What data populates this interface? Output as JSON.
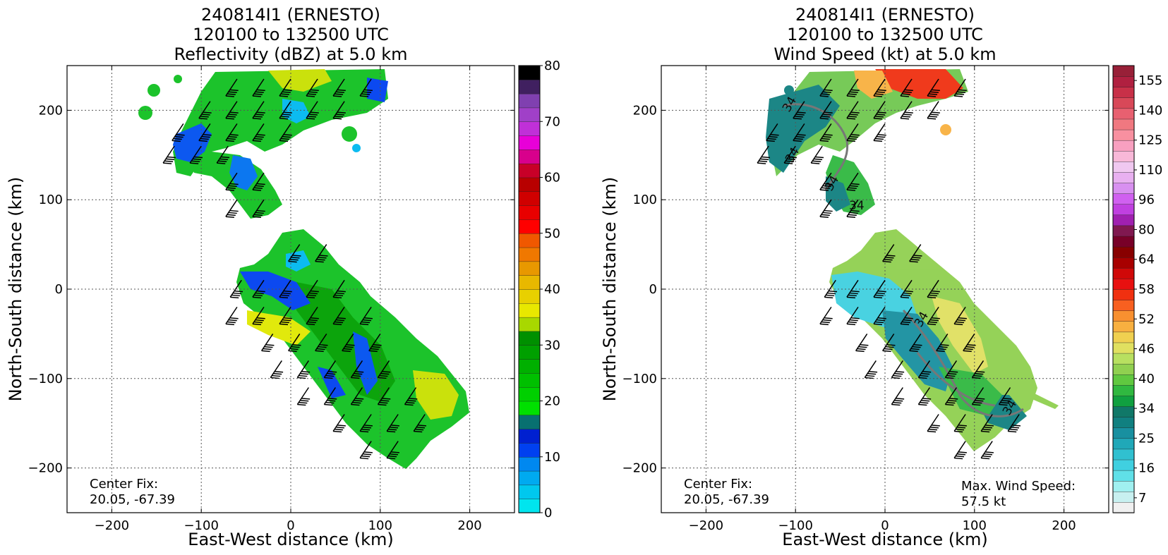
{
  "chart_data": [
    {
      "type": "heatmap",
      "title_lines": [
        "240814I1 (ERNESTO)",
        "120100 to 132500 UTC",
        "Reflectivity (dBZ) at 5.0 km"
      ],
      "xlabel": "East-West distance (km)",
      "ylabel": "North-South distance (km)",
      "xlim": [
        -250,
        250
      ],
      "ylim": [
        -250,
        250
      ],
      "xticks": [
        -200,
        -100,
        0,
        100,
        200
      ],
      "yticks": [
        -200,
        -100,
        0,
        100,
        200
      ],
      "xtick_labels": [
        "−200",
        "−100",
        "0",
        "100",
        "200"
      ],
      "ytick_labels": [
        "−200",
        "−100",
        "0",
        "100",
        "200"
      ],
      "grid": true,
      "annotation_lines": [
        "Center Fix:",
        "20.05, -67.39"
      ],
      "colorbar": {
        "range": [
          0,
          80
        ],
        "ticks": [
          0,
          10,
          20,
          30,
          40,
          50,
          60,
          70,
          80
        ],
        "tick_labels": [
          "0",
          "10",
          "20",
          "30",
          "40",
          "50",
          "60",
          "70",
          "80"
        ],
        "colors": [
          "#00e5ee",
          "#00c8ee",
          "#00aaf0",
          "#0088f0",
          "#0040f0",
          "#0020d0",
          "#087070",
          "#00e000",
          "#00d000",
          "#00c000",
          "#00b000",
          "#00a000",
          "#009000",
          "#a8d800",
          "#e8e800",
          "#e8d000",
          "#e8b800",
          "#e89800",
          "#f07800",
          "#f05800",
          "#ff0000",
          "#e80000",
          "#d00000",
          "#b80000",
          "#c80028",
          "#d8008c",
          "#e800d8",
          "#c030d8",
          "#a040c8",
          "#8040b0",
          "#402060",
          "#000000"
        ]
      },
      "wind_barb_rows": [
        {
          "y": 235,
          "x": [
            -60,
            -30,
            0,
            30,
            60,
            90
          ]
        },
        {
          "y": 210,
          "x": [
            -90,
            -60,
            -30,
            0,
            30,
            60
          ]
        },
        {
          "y": 185,
          "x": [
            -120,
            -90,
            -60,
            -30,
            0
          ]
        },
        {
          "y": 160,
          "x": [
            -130,
            -100,
            -70
          ]
        },
        {
          "y": 130,
          "x": [
            -60,
            -30
          ]
        },
        {
          "y": 100,
          "x": [
            -60,
            -30
          ]
        },
        {
          "y": 50,
          "x": [
            10,
            40
          ]
        },
        {
          "y": 10,
          "x": [
            -55,
            -30,
            0,
            30,
            60
          ]
        },
        {
          "y": -20,
          "x": [
            -60,
            -30,
            0,
            30,
            60,
            90
          ]
        },
        {
          "y": -50,
          "x": [
            -20,
            10,
            40,
            70,
            100
          ]
        },
        {
          "y": -80,
          "x": [
            -10,
            20,
            50,
            80,
            110
          ]
        },
        {
          "y": -110,
          "x": [
            20,
            50,
            80,
            110,
            140
          ]
        },
        {
          "y": -140,
          "x": [
            60,
            90,
            120,
            150
          ]
        },
        {
          "y": -170,
          "x": [
            90,
            120
          ]
        }
      ]
    },
    {
      "type": "heatmap",
      "title_lines": [
        "240814I1 (ERNESTO)",
        "120100 to 132500 UTC",
        "Wind Speed (kt) at 5.0 km"
      ],
      "xlabel": "East-West distance (km)",
      "ylabel": "North-South distance (km)",
      "xlim": [
        -250,
        250
      ],
      "ylim": [
        -250,
        250
      ],
      "xticks": [
        -200,
        -100,
        0,
        100,
        200
      ],
      "yticks": [
        -200,
        -100,
        0,
        100,
        200
      ],
      "xtick_labels": [
        "−200",
        "−100",
        "0",
        "100",
        "200"
      ],
      "ytick_labels": [
        "−200",
        "−100",
        "0",
        "100",
        "200"
      ],
      "grid": true,
      "annotation_lines": [
        "Center Fix:",
        "20.05, -67.39"
      ],
      "max_wind_lines": [
        "Max. Wind Speed:",
        "57.5 kt"
      ],
      "contour_label": "34",
      "colorbar": {
        "tick_labels": [
          "7",
          "16",
          "25",
          "34",
          "40",
          "46",
          "52",
          "58",
          "64",
          "80",
          "96",
          "110",
          "125",
          "140",
          "155"
        ],
        "colors": [
          "#f0f0f0",
          "#c8f0f0",
          "#a0f0f0",
          "#60e0e8",
          "#40d0e0",
          "#30c0d0",
          "#20a8b8",
          "#1890a0",
          "#108080",
          "#107868",
          "#10a040",
          "#30b840",
          "#60c840",
          "#90d050",
          "#b8e060",
          "#e0e060",
          "#f0d050",
          "#f8b040",
          "#f89030",
          "#f86020",
          "#f03010",
          "#e81010",
          "#d00808",
          "#a80000",
          "#880000",
          "#780028",
          "#801850",
          "#a020b0",
          "#c040e0",
          "#d060f0",
          "#d890f0",
          "#e8b0f0",
          "#f0c8f0",
          "#f8b8d8",
          "#f8a0c0",
          "#f890a0",
          "#f07880",
          "#e86070",
          "#d84858",
          "#c83048",
          "#b02040",
          "#982038"
        ]
      },
      "wind_barb_rows": [
        {
          "y": 235,
          "x": [
            -60,
            -30,
            0,
            30,
            60,
            90
          ]
        },
        {
          "y": 210,
          "x": [
            -90,
            -60,
            -30,
            0,
            30,
            60
          ]
        },
        {
          "y": 185,
          "x": [
            -120,
            -90,
            -60,
            -30,
            0
          ]
        },
        {
          "y": 160,
          "x": [
            -130,
            -100,
            -70
          ]
        },
        {
          "y": 130,
          "x": [
            -60,
            -30
          ]
        },
        {
          "y": 100,
          "x": [
            -60,
            -30
          ]
        },
        {
          "y": 50,
          "x": [
            10,
            40
          ]
        },
        {
          "y": 10,
          "x": [
            -55,
            -30,
            0,
            30,
            60
          ]
        },
        {
          "y": -20,
          "x": [
            -60,
            -30,
            0,
            30,
            60,
            90
          ]
        },
        {
          "y": -50,
          "x": [
            -20,
            10,
            40,
            70,
            100
          ]
        },
        {
          "y": -80,
          "x": [
            -10,
            20,
            50,
            80,
            110
          ]
        },
        {
          "y": -110,
          "x": [
            20,
            50,
            80,
            110,
            140
          ]
        },
        {
          "y": -140,
          "x": [
            60,
            90,
            120,
            150
          ]
        },
        {
          "y": -170,
          "x": [
            90,
            120
          ]
        }
      ]
    }
  ]
}
